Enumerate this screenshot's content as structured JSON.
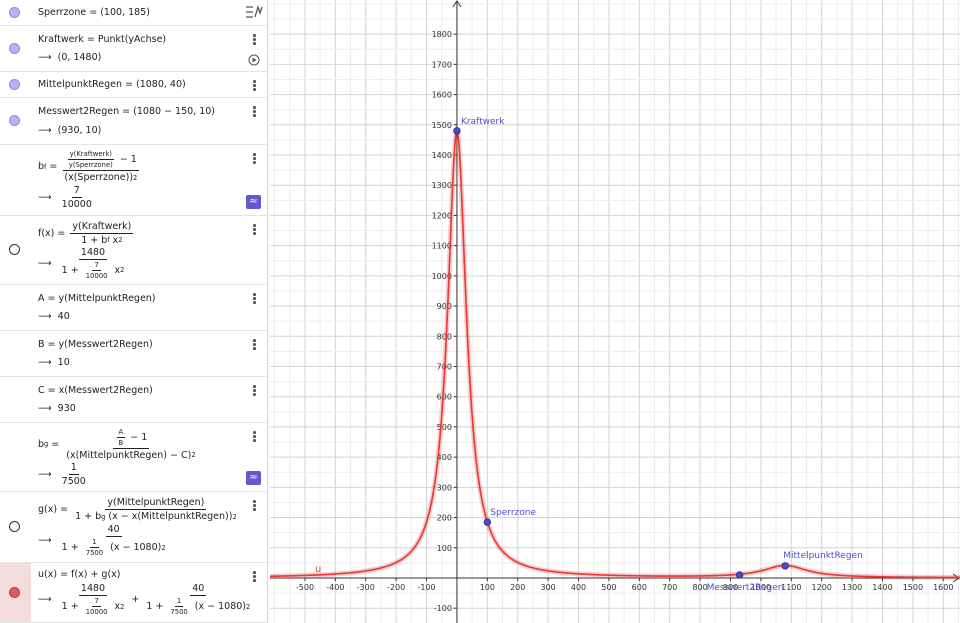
{
  "algebra": {
    "rows": [
      {
        "dot": "filled",
        "lines": [
          [
            "Sperrzone = (100, 185)"
          ]
        ]
      },
      {
        "dot": "filled",
        "play": true,
        "lines": [
          [
            "Kraftwerk = Punkt(yAchse)"
          ],
          [
            "⟶  (0, 1480)"
          ]
        ]
      },
      {
        "dot": "filled",
        "lines": [
          [
            "MittelpunktRegen = (1080, 40)"
          ]
        ]
      },
      {
        "dot": "filled",
        "lines": [
          [
            "Messwert2Regen = (1080 − 150, 10)"
          ],
          [
            "⟶  (930, 10)"
          ]
        ]
      },
      {
        "dot": "none",
        "button": "≈",
        "lines": [
          [
            "b",
            {
              "sub": "f"
            },
            " = ",
            {
              "num": [
                {
                  "num": [
                    "y(Kraftwerk)"
                  ],
                  "den": [
                    "y(Sperrzone)"
                  ]
                },
                " − 1"
              ],
              "den": [
                "(x(Sperrzone))",
                {
                  "sup": "2"
                }
              ]
            }
          ],
          [
            "⟶  ",
            {
              "num": [
                "7"
              ],
              "den": [
                "10000"
              ]
            }
          ]
        ]
      },
      {
        "dot": "open",
        "lines": [
          [
            "f(x) = ",
            {
              "num": [
                "y(Kraftwerk)"
              ],
              "den": [
                "1 + b",
                {
                  "sub": "f"
                },
                " x",
                {
                  "sup": "2"
                }
              ]
            }
          ],
          [
            "⟶  ",
            {
              "num": [
                "1480"
              ],
              "den": [
                "1 + ",
                {
                  "num": [
                    "7"
                  ],
                  "den": [
                    "10000"
                  ]
                },
                " x",
                {
                  "sup": "2"
                }
              ]
            }
          ]
        ]
      },
      {
        "dot": "none",
        "lines": [
          [
            "A = y(MittelpunktRegen)"
          ],
          [
            "⟶  40"
          ]
        ]
      },
      {
        "dot": "none",
        "lines": [
          [
            "B = y(Messwert2Regen)"
          ],
          [
            "⟶  10"
          ]
        ]
      },
      {
        "dot": "none",
        "lines": [
          [
            "C = x(Messwert2Regen)"
          ],
          [
            "⟶  930"
          ]
        ]
      },
      {
        "dot": "none",
        "button": "≈",
        "lines": [
          [
            "b",
            {
              "sub": "g"
            },
            " = ",
            {
              "num": [
                {
                  "num": [
                    "A"
                  ],
                  "den": [
                    "B"
                  ]
                },
                " − 1"
              ],
              "den": [
                "(x(MittelpunktRegen) − C)",
                {
                  "sup": "2"
                }
              ]
            }
          ],
          [
            "⟶  ",
            {
              "num": [
                "1"
              ],
              "den": [
                "7500"
              ]
            }
          ]
        ]
      },
      {
        "dot": "open",
        "lines": [
          [
            "g(x) = ",
            {
              "num": [
                "y(MittelpunktRegen)"
              ],
              "den": [
                "1 + b",
                {
                  "sub": "g"
                },
                " (x − x(MittelpunktRegen))",
                {
                  "sup": "2"
                }
              ]
            }
          ],
          [
            "⟶  ",
            {
              "num": [
                "40"
              ],
              "den": [
                "1 + ",
                {
                  "num": [
                    "1"
                  ],
                  "den": [
                    "7500"
                  ]
                },
                " (x − 1080)",
                {
                  "sup": "2"
                }
              ]
            }
          ]
        ]
      },
      {
        "dot": "red",
        "selected": true,
        "lines": [
          [
            "u(x) = f(x) + g(x)"
          ],
          [
            "⟶  ",
            {
              "num": [
                "1480"
              ],
              "den": [
                "1 + ",
                {
                  "num": [
                    "7"
                  ],
                  "den": [
                    "10000"
                  ]
                },
                " x",
                {
                  "sup": "2"
                }
              ]
            },
            " + ",
            {
              "num": [
                "40"
              ],
              "den": [
                "1 + ",
                {
                  "num": [
                    "1"
                  ],
                  "den": [
                    "7500"
                  ]
                },
                " (x − 1080)",
                {
                  "sup": "2"
                }
              ]
            }
          ]
        ]
      }
    ]
  },
  "graph": {
    "xlim": [
      -615,
      1655
    ],
    "ylim": [
      -149,
      1913
    ],
    "xticks": [
      -500,
      -400,
      -300,
      -200,
      -100,
      100,
      200,
      300,
      400,
      500,
      600,
      700,
      800,
      900,
      1000,
      1100,
      1200,
      1300,
      1400,
      1500,
      1600
    ],
    "yticks": [
      -100,
      100,
      200,
      300,
      400,
      500,
      600,
      700,
      800,
      900,
      1000,
      1100,
      1200,
      1300,
      1400,
      1500,
      1600,
      1700,
      1800
    ],
    "grid": true,
    "curve": {
      "label": "u",
      "color": "#e53935",
      "terms": [
        {
          "height": 1480,
          "center": 0,
          "coef_num": 7,
          "coef_den": 10000
        },
        {
          "height": 40,
          "center": 1080,
          "coef_num": 1,
          "coef_den": 7500
        }
      ]
    },
    "points": [
      {
        "label": "Sperrzone",
        "x": 100,
        "y": 185
      },
      {
        "label": "Kraftwerk",
        "x": 0,
        "y": 1480
      },
      {
        "label": "MittelpunktRegen",
        "x": 1080,
        "y": 40
      },
      {
        "label": "Messwert2Regen",
        "x": 930,
        "y": 10
      }
    ],
    "point_color": "#4b4bc8"
  }
}
